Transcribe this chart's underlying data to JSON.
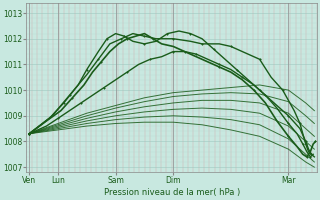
{
  "bg_color": "#c8e8e0",
  "grid_color_v": "#d4a8a8",
  "grid_color_h": "#b8d8d0",
  "line_color": "#1a5c1a",
  "ylim": [
    1006.8,
    1013.4
  ],
  "yticks": [
    1007,
    1008,
    1009,
    1010,
    1011,
    1012,
    1013
  ],
  "xlabel": "Pression niveau de la mer( hPa )",
  "xtick_positions": [
    0.0,
    0.5,
    1.5,
    2.5,
    4.5
  ],
  "xtick_labels": [
    "Ven",
    "Lun",
    "Sam",
    "Dim",
    "Mar"
  ],
  "xlim": [
    -0.05,
    5.0
  ],
  "vlines": [
    0.0,
    0.5,
    1.5,
    2.5,
    4.5
  ],
  "lines": [
    {
      "x": [
        0.0,
        0.4,
        0.7,
        1.0,
        1.2,
        1.4,
        1.6,
        1.8,
        2.0,
        2.2,
        2.5,
        2.8,
        3.0,
        3.3,
        3.5,
        3.8,
        4.0,
        4.2,
        4.4,
        4.6,
        4.7,
        4.75,
        4.8,
        4.85,
        4.9,
        4.95
      ],
      "y": [
        1008.3,
        1009.0,
        1009.8,
        1010.6,
        1011.2,
        1011.8,
        1012.0,
        1012.2,
        1012.1,
        1012.0,
        1012.0,
        1011.9,
        1011.8,
        1011.8,
        1011.7,
        1011.4,
        1011.2,
        1010.5,
        1010.0,
        1009.2,
        1008.7,
        1008.3,
        1007.9,
        1007.6,
        1007.5,
        1007.4
      ],
      "style": "-",
      "lw": 1.0,
      "marker": true,
      "alpha": 1.0
    },
    {
      "x": [
        0.0,
        0.35,
        0.6,
        0.85,
        1.0,
        1.2,
        1.35,
        1.5,
        1.65,
        1.8,
        2.0,
        2.2,
        2.4,
        2.6,
        2.8,
        3.0,
        3.2,
        3.4,
        3.6,
        3.8,
        4.0,
        4.2,
        4.5,
        4.7,
        4.8,
        4.85,
        4.9
      ],
      "y": [
        1008.3,
        1008.9,
        1009.5,
        1010.2,
        1010.8,
        1011.5,
        1012.0,
        1012.2,
        1012.1,
        1011.9,
        1011.8,
        1011.9,
        1012.2,
        1012.3,
        1012.2,
        1012.0,
        1011.6,
        1011.2,
        1010.8,
        1010.4,
        1010.0,
        1009.6,
        1009.0,
        1008.5,
        1008.0,
        1007.7,
        1007.5
      ],
      "style": "-",
      "lw": 1.0,
      "marker": true,
      "alpha": 1.0
    },
    {
      "x": [
        0.0,
        0.3,
        0.55,
        0.75,
        0.95,
        1.1,
        1.25,
        1.4,
        1.55,
        1.7,
        1.85,
        2.0,
        2.15,
        2.3,
        2.5,
        2.7,
        2.9,
        3.1,
        3.3,
        3.5,
        3.7,
        3.9,
        4.1,
        4.3,
        4.5,
        4.65,
        4.75,
        4.82,
        4.88,
        4.93,
        4.97
      ],
      "y": [
        1008.3,
        1008.8,
        1009.2,
        1009.7,
        1010.2,
        1010.7,
        1011.1,
        1011.5,
        1011.8,
        1012.0,
        1012.1,
        1012.2,
        1012.0,
        1011.8,
        1011.7,
        1011.5,
        1011.3,
        1011.1,
        1010.9,
        1010.7,
        1010.4,
        1010.0,
        1009.5,
        1008.8,
        1008.2,
        1007.8,
        1007.5,
        1007.4,
        1007.6,
        1007.9,
        1008.0
      ],
      "style": "-",
      "lw": 1.2,
      "marker": true,
      "alpha": 1.0
    },
    {
      "x": [
        0.0,
        0.5,
        1.0,
        1.5,
        2.0,
        2.5,
        3.0,
        3.5,
        4.0,
        4.5,
        4.8,
        4.95
      ],
      "y": [
        1008.3,
        1008.7,
        1009.1,
        1009.4,
        1009.7,
        1009.9,
        1010.0,
        1010.1,
        1010.2,
        1010.0,
        1009.5,
        1009.2
      ],
      "style": "-",
      "lw": 0.7,
      "marker": false,
      "alpha": 0.85
    },
    {
      "x": [
        0.0,
        0.5,
        1.0,
        1.5,
        2.0,
        2.5,
        3.0,
        3.5,
        4.0,
        4.5,
        4.8,
        4.95
      ],
      "y": [
        1008.3,
        1008.65,
        1009.0,
        1009.3,
        1009.55,
        1009.75,
        1009.85,
        1009.9,
        1009.85,
        1009.55,
        1009.0,
        1008.7
      ],
      "style": "-",
      "lw": 0.7,
      "marker": false,
      "alpha": 0.85
    },
    {
      "x": [
        0.0,
        0.5,
        1.0,
        1.5,
        2.0,
        2.5,
        3.0,
        3.5,
        4.0,
        4.5,
        4.8,
        4.95
      ],
      "y": [
        1008.3,
        1008.6,
        1008.9,
        1009.15,
        1009.35,
        1009.5,
        1009.6,
        1009.6,
        1009.5,
        1009.1,
        1008.5,
        1008.2
      ],
      "style": "-",
      "lw": 0.7,
      "marker": false,
      "alpha": 0.85
    },
    {
      "x": [
        0.0,
        0.5,
        1.0,
        1.5,
        2.0,
        2.5,
        3.0,
        3.5,
        4.0,
        4.5,
        4.8,
        4.95
      ],
      "y": [
        1008.3,
        1008.55,
        1008.8,
        1009.0,
        1009.15,
        1009.25,
        1009.3,
        1009.25,
        1009.1,
        1008.6,
        1008.0,
        1007.7
      ],
      "style": "-",
      "lw": 0.7,
      "marker": false,
      "alpha": 0.85
    },
    {
      "x": [
        0.0,
        0.5,
        1.0,
        1.5,
        2.0,
        2.5,
        3.0,
        3.5,
        4.0,
        4.5,
        4.8,
        4.95
      ],
      "y": [
        1008.3,
        1008.5,
        1008.7,
        1008.85,
        1008.95,
        1009.0,
        1008.95,
        1008.85,
        1008.65,
        1008.1,
        1007.5,
        1007.2
      ],
      "style": "-",
      "lw": 0.7,
      "marker": false,
      "alpha": 0.85
    },
    {
      "x": [
        0.0,
        0.5,
        1.0,
        1.5,
        2.0,
        2.5,
        3.0,
        3.5,
        4.0,
        4.5,
        4.8,
        4.95
      ],
      "y": [
        1008.3,
        1008.45,
        1008.6,
        1008.7,
        1008.75,
        1008.75,
        1008.65,
        1008.45,
        1008.2,
        1007.7,
        1007.2,
        1007.0
      ],
      "style": "-",
      "lw": 0.7,
      "marker": false,
      "alpha": 0.85
    },
    {
      "x": [
        0.0,
        0.3,
        0.5,
        0.7,
        0.9,
        1.1,
        1.3,
        1.5,
        1.7,
        1.9,
        2.1,
        2.3,
        2.5,
        2.7,
        2.9,
        3.1,
        3.3,
        3.5,
        3.7,
        3.9,
        4.1,
        4.3,
        4.5,
        4.65,
        4.75,
        4.82,
        4.88,
        4.93
      ],
      "y": [
        1008.3,
        1008.6,
        1008.9,
        1009.2,
        1009.5,
        1009.8,
        1010.1,
        1010.4,
        1010.7,
        1011.0,
        1011.2,
        1011.3,
        1011.5,
        1011.5,
        1011.4,
        1011.2,
        1011.0,
        1010.8,
        1010.5,
        1010.2,
        1009.8,
        1009.3,
        1008.7,
        1008.3,
        1007.9,
        1007.6,
        1007.4,
        1007.5
      ],
      "style": "-",
      "lw": 1.0,
      "marker": true,
      "alpha": 1.0
    }
  ]
}
